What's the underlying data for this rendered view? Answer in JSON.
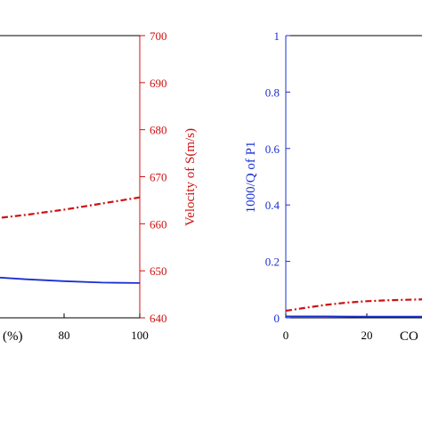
{
  "chart_data": [
    {
      "type": "line",
      "panel": "left",
      "xlabel_visible_fragment": "(%)",
      "ylabel_right": "Velocity of S(m/s)",
      "xlim": [
        0,
        100
      ],
      "x_ticks": [
        80,
        100
      ],
      "y_right_lim": [
        640,
        700
      ],
      "y_right_ticks": [
        640,
        650,
        660,
        670,
        680,
        690,
        700
      ],
      "y_right_color": "#cc1111",
      "grid": false,
      "series": [
        {
          "axis": "left",
          "color": "#1a2fd0",
          "style": "solid",
          "x": [
            60,
            70,
            80,
            90,
            100
          ],
          "y_in_right_units": [
            648.7,
            648.2,
            647.8,
            647.5,
            647.4
          ]
        },
        {
          "axis": "right",
          "color": "#cc1111",
          "style": "dash-dot",
          "x": [
            60,
            70,
            80,
            90,
            100
          ],
          "y": [
            661.0,
            661.9,
            663.0,
            664.3,
            665.6
          ]
        }
      ]
    },
    {
      "type": "line",
      "panel": "right",
      "xlabel_visible_fragment": "CO",
      "ylabel": "1000/Q of P1",
      "ylabel_color": "#1a2fd0",
      "xlim": [
        0,
        40
      ],
      "x_ticks": [
        0,
        20
      ],
      "ylim": [
        0,
        1
      ],
      "y_ticks": [
        0,
        0.2,
        0.4,
        0.6,
        0.8,
        1
      ],
      "y_tick_labels": [
        "0",
        "0.2",
        "0.4",
        "0.6",
        "0.8",
        "1"
      ],
      "grid": false,
      "series": [
        {
          "color": "#1a2fd0",
          "style": "solid",
          "x": [
            0,
            10,
            20,
            30,
            40
          ],
          "y": [
            0.005,
            0.005,
            0.004,
            0.004,
            0.004
          ]
        },
        {
          "color": "#cc1111",
          "style": "dash-dot",
          "x": [
            0,
            5,
            10,
            15,
            20,
            25,
            30,
            35,
            40
          ],
          "y": [
            0.025,
            0.036,
            0.046,
            0.054,
            0.059,
            0.062,
            0.064,
            0.066,
            0.068
          ]
        }
      ]
    }
  ]
}
